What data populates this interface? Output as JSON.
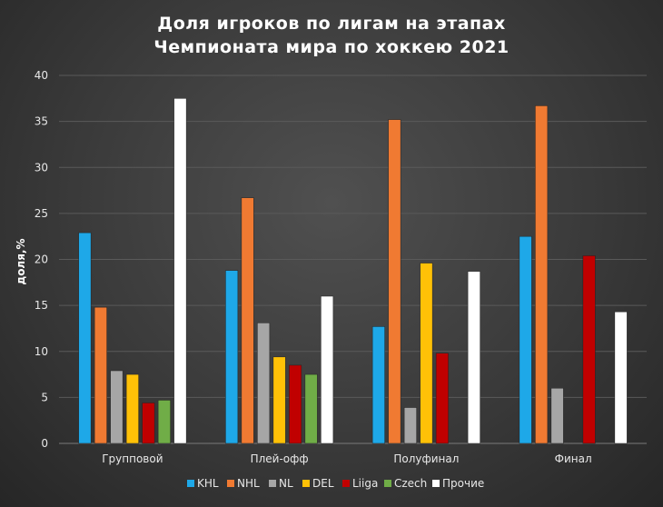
{
  "chart_data": {
    "type": "bar",
    "title_lines": [
      "Доля игроков по лигам на этапах",
      "Чемпионата мира по хоккею 2021"
    ],
    "xlabel": "",
    "ylabel": "доля,%",
    "ylim": [
      0,
      40
    ],
    "yticks": [
      0,
      5,
      10,
      15,
      20,
      25,
      30,
      35,
      40
    ],
    "grid": true,
    "legend_position": "bottom",
    "categories": [
      "Групповой",
      "Плей-офф",
      "Полуфинал",
      "Финал"
    ],
    "series": [
      {
        "name": "KHL",
        "color": "#1ea8e8",
        "values": [
          22.9,
          18.8,
          12.7,
          22.5
        ]
      },
      {
        "name": "NHL",
        "color": "#f07a32",
        "values": [
          14.8,
          26.7,
          35.2,
          36.7
        ]
      },
      {
        "name": "NL",
        "color": "#a6a6a6",
        "values": [
          7.9,
          13.1,
          3.9,
          6.0
        ]
      },
      {
        "name": "DEL",
        "color": "#ffc107",
        "values": [
          7.5,
          9.4,
          19.6,
          null
        ]
      },
      {
        "name": "Liiga",
        "color": "#c00000",
        "values": [
          4.4,
          8.5,
          9.8,
          20.4
        ]
      },
      {
        "name": "Czech",
        "color": "#70ad47",
        "values": [
          4.7,
          7.5,
          null,
          null
        ]
      },
      {
        "name": "Прочие",
        "color": "#ffffff",
        "values": [
          37.5,
          16.0,
          18.7,
          14.3
        ]
      }
    ]
  }
}
